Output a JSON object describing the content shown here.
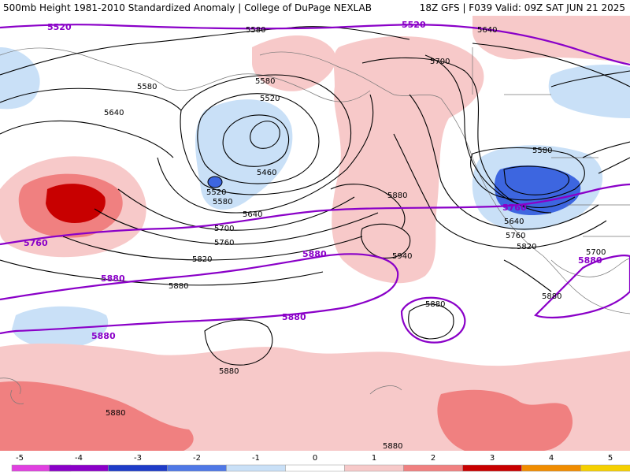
{
  "header": {
    "left": "500mb Height 1981-2010 Standardized Anomaly | College of DuPage NEXLAB",
    "right": "18Z GFS | F039 Valid: 09Z SAT JUN 21 2025"
  },
  "colors": {
    "strong_pos": "#c80000",
    "mid_pos": "#f08080",
    "light_pos": "#f7c9c9",
    "light_neg": "#c9e0f7",
    "mid_neg": "#7fa8f0",
    "strong_neg": "#3d66e0",
    "contour": "#000000",
    "highlight_contour": "#8a00c8"
  },
  "contour_labels": [
    {
      "text": "5580"
    },
    {
      "text": "5640"
    },
    {
      "text": "5700"
    },
    {
      "text": "5580"
    },
    {
      "text": "5520"
    },
    {
      "text": "5580"
    },
    {
      "text": "5460"
    },
    {
      "text": "5520"
    },
    {
      "text": "5580"
    },
    {
      "text": "5640"
    },
    {
      "text": "5700"
    },
    {
      "text": "5760"
    },
    {
      "text": "5820"
    },
    {
      "text": "5880"
    },
    {
      "text": "5940"
    },
    {
      "text": "5880"
    },
    {
      "text": "5880"
    },
    {
      "text": "5580"
    },
    {
      "text": "5640"
    },
    {
      "text": "5760"
    },
    {
      "text": "5820"
    },
    {
      "text": "5880"
    },
    {
      "text": "5880"
    },
    {
      "text": "5880"
    },
    {
      "text": "5880"
    },
    {
      "text": "5700"
    },
    {
      "text": "5640"
    }
  ],
  "highlight_labels": [
    {
      "text": "5520"
    },
    {
      "text": "5520"
    },
    {
      "text": "5760"
    },
    {
      "text": "5760"
    },
    {
      "text": "5880"
    },
    {
      "text": "5880"
    },
    {
      "text": "5880"
    },
    {
      "text": "5880"
    },
    {
      "text": "5880"
    }
  ],
  "colorbar": {
    "ticks": [
      "-5",
      "-4",
      "-3",
      "-2",
      "-1",
      "0",
      "1",
      "2",
      "3",
      "4",
      "5"
    ],
    "colors": [
      "#e040e0",
      "#8a00c8",
      "#1e3cc8",
      "#4f78e6",
      "#c9e0f7",
      "#ffffff",
      "#f7c9c9",
      "#f08080",
      "#c80000",
      "#f08c00",
      "#f5d000"
    ]
  }
}
